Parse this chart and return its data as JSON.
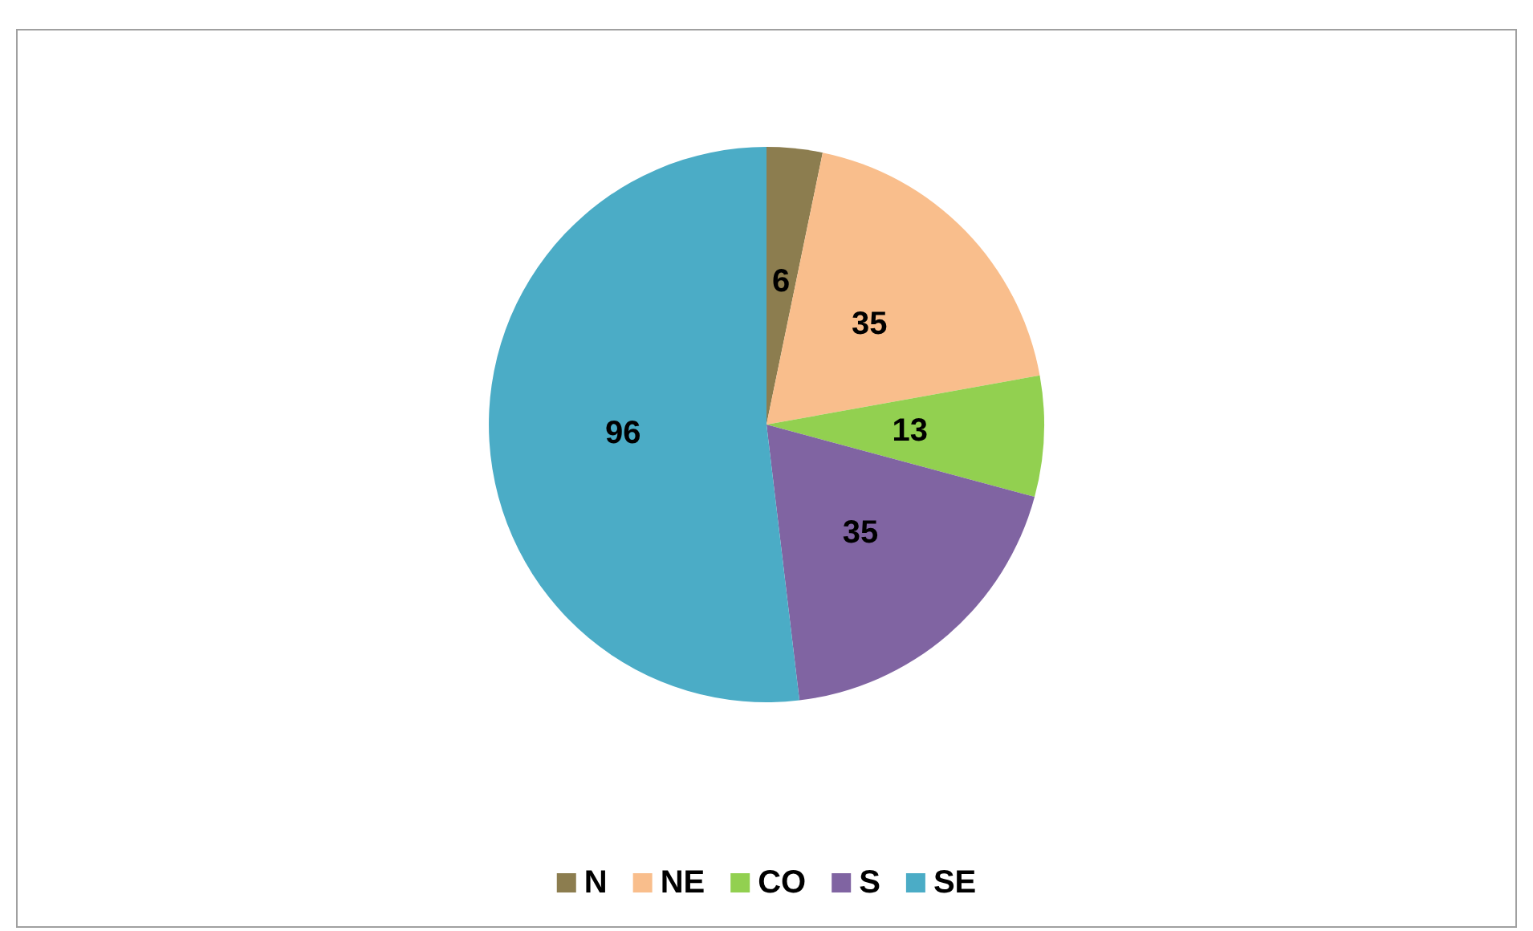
{
  "chart_data": {
    "type": "pie",
    "categories": [
      "N",
      "NE",
      "CO",
      "S",
      "SE"
    ],
    "values": [
      6,
      35,
      13,
      35,
      96
    ],
    "colors": [
      "#8c7d4f",
      "#f9be8c",
      "#92d050",
      "#8064a2",
      "#4bacc6"
    ],
    "data_labels": true,
    "legend": "bottom"
  }
}
